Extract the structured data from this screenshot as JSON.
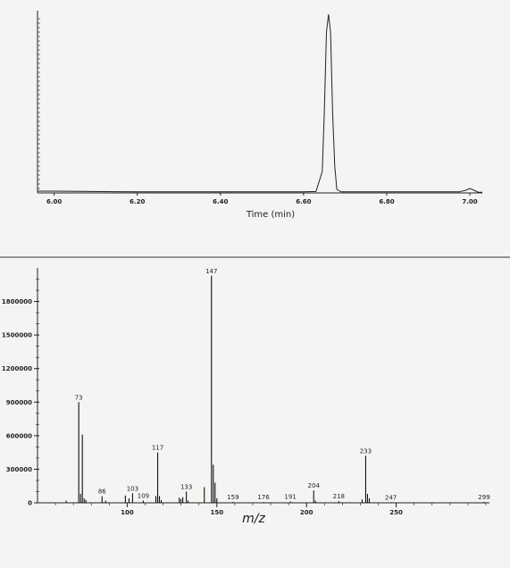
{
  "chart_data": [
    {
      "type": "line",
      "title": "",
      "xlabel": "Time (min)",
      "ylabel": "",
      "xlim": [
        5.96,
        7.03
      ],
      "ylim": [
        0,
        1
      ],
      "x_ticks": [
        "6.00",
        "6.20",
        "6.40",
        "6.60",
        "6.80",
        "7.00"
      ],
      "series": [
        {
          "x": [
            5.96,
            6.0,
            6.2,
            6.4,
            6.6,
            6.63,
            6.645,
            6.65,
            6.655,
            6.66,
            6.665,
            6.67,
            6.675,
            6.68,
            6.69,
            6.72,
            6.8,
            6.9,
            6.975,
            6.99,
            7.0,
            7.01,
            7.02,
            7.03
          ],
          "y": [
            0.01,
            0.01,
            0.006,
            0.006,
            0.006,
            0.008,
            0.12,
            0.45,
            0.9,
            1.0,
            0.9,
            0.45,
            0.15,
            0.02,
            0.006,
            0.006,
            0.006,
            0.006,
            0.006,
            0.015,
            0.025,
            0.015,
            0.004,
            0.004
          ]
        }
      ]
    },
    {
      "type": "bar",
      "title": "",
      "xlabel": "m/z",
      "ylabel": "",
      "xlim": [
        50,
        302
      ],
      "ylim": [
        0,
        2100000
      ],
      "x_ticks": [
        "100",
        "150",
        "200",
        "250"
      ],
      "x_tick_values": [
        100,
        150,
        200,
        250
      ],
      "y_ticks": [
        "0",
        "300000",
        "600000",
        "900000",
        "1200000",
        "1500000",
        "1800000"
      ],
      "y_tick_values": [
        0,
        300000,
        600000,
        900000,
        1200000,
        1500000,
        1800000
      ],
      "peaks": [
        {
          "mz": 66,
          "intensity": 20000
        },
        {
          "mz": 73,
          "intensity": 900000,
          "label": "73"
        },
        {
          "mz": 74,
          "intensity": 80000
        },
        {
          "mz": 75,
          "intensity": 610000
        },
        {
          "mz": 76,
          "intensity": 40000
        },
        {
          "mz": 77,
          "intensity": 25000
        },
        {
          "mz": 86,
          "intensity": 60000,
          "label": "86"
        },
        {
          "mz": 88,
          "intensity": 20000
        },
        {
          "mz": 99,
          "intensity": 65000
        },
        {
          "mz": 101,
          "intensity": 40000
        },
        {
          "mz": 103,
          "intensity": 85000,
          "label": "103"
        },
        {
          "mz": 109,
          "intensity": 20000,
          "label": "109"
        },
        {
          "mz": 116,
          "intensity": 60000
        },
        {
          "mz": 117,
          "intensity": 450000,
          "label": "117"
        },
        {
          "mz": 118,
          "intensity": 60000
        },
        {
          "mz": 119,
          "intensity": 25000
        },
        {
          "mz": 129,
          "intensity": 45000
        },
        {
          "mz": 130,
          "intensity": 35000
        },
        {
          "mz": 131,
          "intensity": 50000
        },
        {
          "mz": 133,
          "intensity": 100000,
          "label": "133"
        },
        {
          "mz": 134,
          "intensity": 20000
        },
        {
          "mz": 143,
          "intensity": 140000
        },
        {
          "mz": 147,
          "intensity": 2030000,
          "label": "147"
        },
        {
          "mz": 148,
          "intensity": 340000
        },
        {
          "mz": 149,
          "intensity": 180000
        },
        {
          "mz": 150,
          "intensity": 40000
        },
        {
          "mz": 159,
          "intensity": 8000,
          "label": "159"
        },
        {
          "mz": 176,
          "intensity": 6000,
          "label": "176"
        },
        {
          "mz": 191,
          "intensity": 12000,
          "label": "191"
        },
        {
          "mz": 204,
          "intensity": 110000,
          "label": "204"
        },
        {
          "mz": 205,
          "intensity": 20000
        },
        {
          "mz": 218,
          "intensity": 15000,
          "label": "218"
        },
        {
          "mz": 231,
          "intensity": 30000
        },
        {
          "mz": 233,
          "intensity": 420000,
          "label": "233"
        },
        {
          "mz": 234,
          "intensity": 80000
        },
        {
          "mz": 235,
          "intensity": 40000
        },
        {
          "mz": 247,
          "intensity": 5000,
          "label": "247"
        },
        {
          "mz": 299,
          "intensity": 8000,
          "label": "299"
        }
      ]
    }
  ]
}
